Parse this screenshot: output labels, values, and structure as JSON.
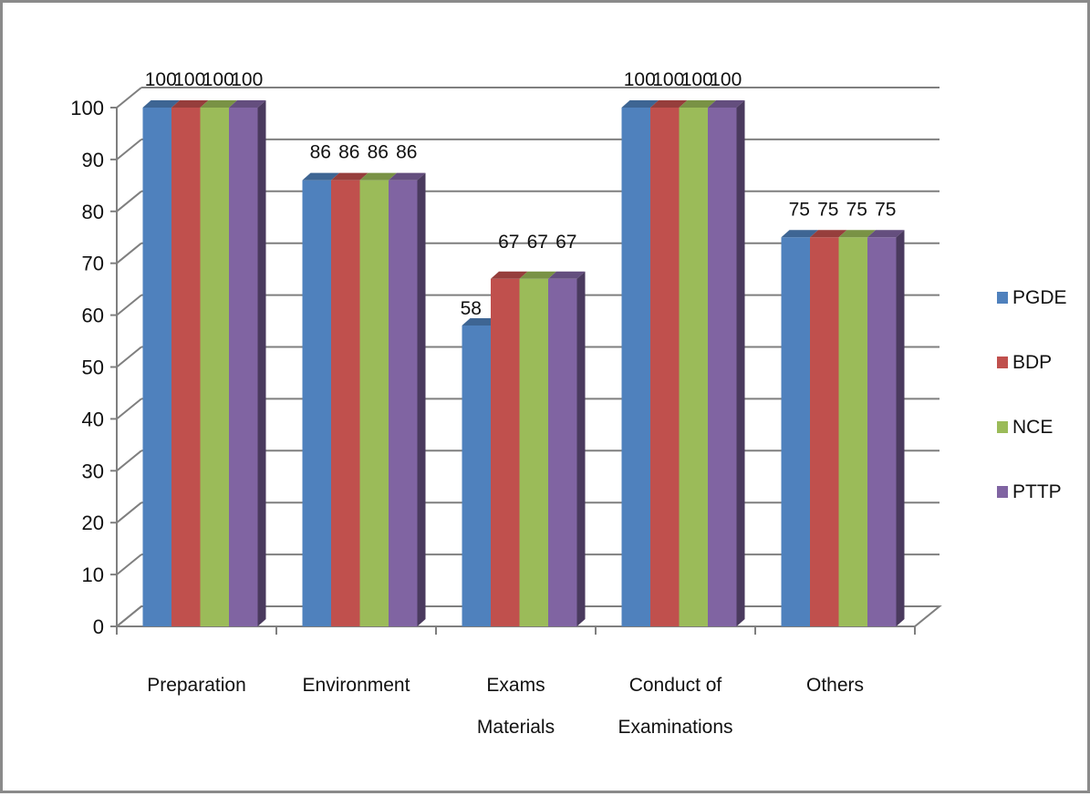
{
  "chart_data": {
    "type": "bar",
    "categories": [
      [
        "Preparation"
      ],
      [
        "Environment"
      ],
      [
        "Exams",
        "Materials"
      ],
      [
        "Conduct of",
        "Examinations"
      ],
      [
        "Others"
      ]
    ],
    "series": [
      {
        "name": "PGDE",
        "values": [
          100,
          86,
          58,
          100,
          75
        ]
      },
      {
        "name": "BDP",
        "values": [
          100,
          86,
          67,
          100,
          75
        ]
      },
      {
        "name": "NCE",
        "values": [
          100,
          86,
          67,
          100,
          75
        ]
      },
      {
        "name": "PTTP",
        "values": [
          100,
          86,
          67,
          100,
          75
        ]
      }
    ],
    "ylim": [
      0,
      100
    ],
    "yticks": [
      0,
      10,
      20,
      30,
      40,
      50,
      60,
      70,
      80,
      90,
      100
    ],
    "grid": true,
    "legend_position": "right",
    "style": "3d-clustered-column",
    "colors": {
      "PGDE": "#4F81BD",
      "BDP": "#C0504D",
      "NCE": "#9BBB59",
      "PTTP": "#8064A2"
    }
  }
}
